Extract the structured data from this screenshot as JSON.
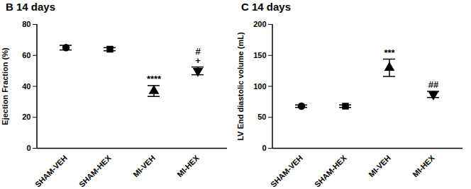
{
  "chart_data": [
    {
      "type": "scatter",
      "title": "B 14 days",
      "y_label": "Ejection Fraction (%)",
      "categories": [
        "SHAM-VEH",
        "SHAM-HEX",
        "MI-VEH",
        "MI-HEX"
      ],
      "values": [
        65,
        64,
        37,
        50
      ],
      "errors": [
        1.5,
        1,
        3.5,
        2.5
      ],
      "markers": [
        "circle",
        "square",
        "triangle",
        "triangle-down"
      ],
      "color": "#000000",
      "annotations": [
        {
          "category": "MI-VEH",
          "labels": [
            "****"
          ]
        },
        {
          "category": "MI-HEX",
          "labels": [
            "#",
            "+"
          ]
        }
      ],
      "ylim": [
        0,
        80
      ],
      "yticks": [
        0,
        20,
        40,
        60,
        80
      ]
    },
    {
      "type": "scatter",
      "title": "C 14 days",
      "y_label": "LV End diastolic volume (mL)",
      "categories": [
        "SHAM-VEH",
        "SHAM-HEX",
        "MI-VEH",
        "MI-HEX"
      ],
      "values": [
        68,
        68,
        130,
        87
      ],
      "errors": [
        2,
        2,
        14,
        5
      ],
      "markers": [
        "circle",
        "square",
        "triangle",
        "triangle-down"
      ],
      "color": "#000000",
      "annotations": [
        {
          "category": "MI-VEH",
          "labels": [
            "***"
          ]
        },
        {
          "category": "MI-HEX",
          "labels": [
            "##"
          ]
        }
      ],
      "ylim": [
        0,
        200
      ],
      "yticks": [
        0,
        50,
        100,
        150,
        200
      ]
    }
  ]
}
